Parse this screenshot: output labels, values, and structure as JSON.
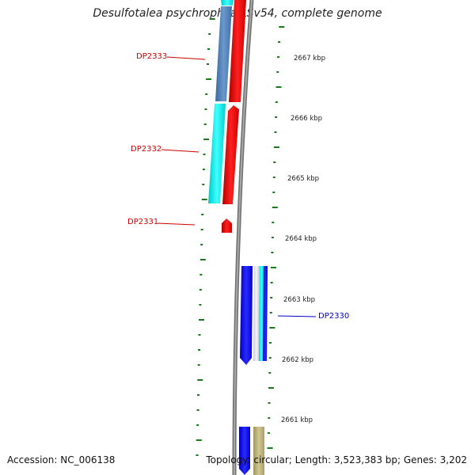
{
  "title": "Desulfotalea psychrophila LSv54, complete genome",
  "footer": {
    "accession": "Accession: NC_006138",
    "summary": "Topology: circular; Length: 3,523,383 bp; Genes: 3,202"
  },
  "scale_labels": [
    "2667 kbp",
    "2666 kbp",
    "2665 kbp",
    "2664 kbp",
    "2663 kbp",
    "2662 kbp",
    "2661 kbp"
  ],
  "gene_labels": [
    {
      "name": "DP2333",
      "color": "#cc0000"
    },
    {
      "name": "DP2332",
      "color": "#cc0000"
    },
    {
      "name": "DP2331",
      "color": "#cc0000"
    },
    {
      "name": "DP2330",
      "color": "#0000cc"
    }
  ],
  "colors": {
    "backbone": "#888888",
    "forward_cds": "#ff0000",
    "reverse_cds": "#0000ff",
    "cyan_track": "#00e5e5",
    "steelblue_track": "#4f7fb5",
    "olive_track": "#b8b07a",
    "tick": "#1a7a1a"
  }
}
